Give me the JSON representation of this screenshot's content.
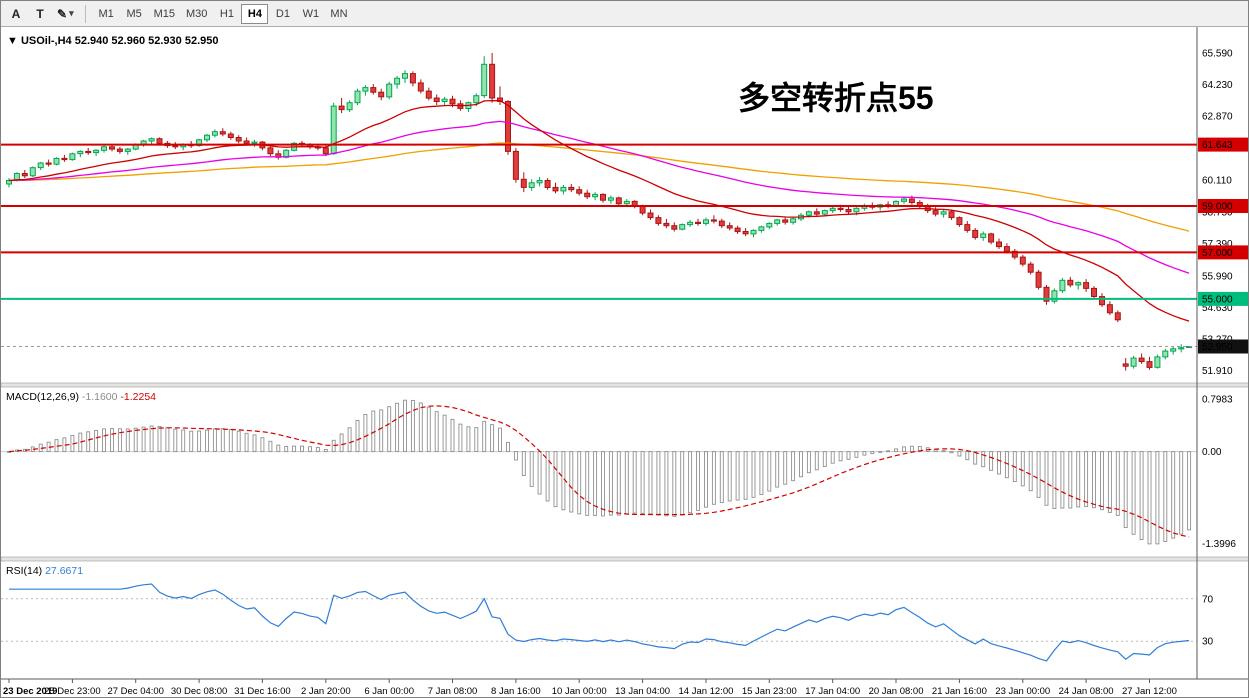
{
  "toolbar": {
    "tool_buttons": [
      {
        "name": "font-tool",
        "glyph": "A"
      },
      {
        "name": "text-tool",
        "glyph": "T"
      },
      {
        "name": "line-tools",
        "glyph": "✎",
        "caret": "▾"
      }
    ],
    "timeframes": [
      "M1",
      "M5",
      "M15",
      "M30",
      "H1",
      "H4",
      "D1",
      "W1",
      "MN"
    ],
    "active_timeframe": "H4"
  },
  "chart_data": {
    "type": "candlestick",
    "header_triangle": "▼",
    "title": "USOil-,H4",
    "ohlc_display": [
      "52.940",
      "52.960",
      "52.930",
      "52.950"
    ],
    "ylim": [
      51.55,
      66.45
    ],
    "style": {
      "bull_stroke": "#00a651",
      "bull_fill": "#8fe5ac",
      "bear_stroke": "#a81414",
      "bear_fill": "#e03c3c"
    },
    "price_ticks": [
      {
        "label": "65.590",
        "value": 65.59
      },
      {
        "label": "64.230",
        "value": 64.23
      },
      {
        "label": "62.870",
        "value": 62.87
      },
      {
        "label": "60.110",
        "value": 60.11
      },
      {
        "label": "58.750",
        "value": 58.75
      },
      {
        "label": "57.390",
        "value": 57.39
      },
      {
        "label": "55.990",
        "value": 55.99
      },
      {
        "label": "54.630",
        "value": 54.63
      },
      {
        "label": "53.270",
        "value": 53.27
      },
      {
        "label": "51.910",
        "value": 51.91
      }
    ],
    "price_levels": [
      {
        "label": "61.643",
        "value": 61.643,
        "color": "#d40000",
        "line_width": 2
      },
      {
        "label": "59.000",
        "value": 59.0,
        "color": "#d40000",
        "line_width": 2
      },
      {
        "label": "57.000",
        "value": 57.0,
        "color": "#d40000",
        "line_width": 2
      },
      {
        "label": "55.000",
        "value": 55.0,
        "color": "#00bd7d",
        "line_width": 2
      }
    ],
    "current_price": {
      "label": "52.950",
      "value": 52.95,
      "badge_color": "#111111"
    },
    "annotation": {
      "text": "多空转折点55",
      "color": "#ff1111"
    },
    "moving_averages": [
      {
        "name": "ma-slow-line",
        "period": 120,
        "method": "ema",
        "color": "#f0a000"
      },
      {
        "name": "ma-mid-line",
        "period": 55,
        "method": "ema",
        "color": "#e800e8"
      },
      {
        "name": "ma-fast-line",
        "period": 21,
        "method": "ema",
        "color": "#cc0000"
      }
    ],
    "indicators": {
      "macd": {
        "label": "MACD(12,26,9)",
        "value_main": "-1.1600",
        "value_signal": "-1.2254",
        "fast": 12,
        "slow": 26,
        "signal": 9,
        "axis_labels": [
          "0.7983",
          "0.00",
          "-1.3996"
        ],
        "histogram_color": "#909090",
        "signal_color": "#d40000"
      },
      "rsi": {
        "label": "RSI(14)",
        "value": "27.6671",
        "period": 14,
        "levels": [
          70,
          30
        ],
        "range": [
          0,
          100
        ],
        "line_color": "#2f7ed8"
      }
    },
    "time_labels": [
      {
        "label": "23 Dec 2019",
        "bar": 0,
        "bold": true
      },
      {
        "label": "25 Dec 23:00",
        "bar": 8
      },
      {
        "label": "27 Dec 04:00",
        "bar": 16
      },
      {
        "label": "30 Dec 08:00",
        "bar": 24
      },
      {
        "label": "31 Dec 16:00",
        "bar": 32
      },
      {
        "label": "2 Jan 20:00",
        "bar": 40
      },
      {
        "label": "6 Jan 00:00",
        "bar": 48
      },
      {
        "label": "7 Jan 08:00",
        "bar": 56
      },
      {
        "label": "8 Jan 16:00",
        "bar": 64
      },
      {
        "label": "10 Jan 00:00",
        "bar": 72
      },
      {
        "label": "13 Jan 04:00",
        "bar": 80
      },
      {
        "label": "14 Jan 12:00",
        "bar": 88
      },
      {
        "label": "15 Jan 23:00",
        "bar": 96
      },
      {
        "label": "17 Jan 04:00",
        "bar": 104
      },
      {
        "label": "20 Jan 08:00",
        "bar": 112
      },
      {
        "label": "21 Jan 16:00",
        "bar": 120
      },
      {
        "label": "23 Jan 00:00",
        "bar": 128
      },
      {
        "label": "24 Jan 08:00",
        "bar": 136
      },
      {
        "label": "27 Jan 12:00",
        "bar": 144
      }
    ],
    "candles": [
      [
        59.95,
        60.2,
        59.8,
        60.1
      ],
      [
        60.1,
        60.45,
        60.05,
        60.4
      ],
      [
        60.4,
        60.55,
        60.2,
        60.3
      ],
      [
        60.3,
        60.7,
        60.25,
        60.65
      ],
      [
        60.65,
        60.9,
        60.55,
        60.85
      ],
      [
        60.85,
        61.0,
        60.7,
        60.8
      ],
      [
        60.8,
        61.1,
        60.75,
        61.05
      ],
      [
        61.05,
        61.2,
        60.9,
        61.0
      ],
      [
        61.0,
        61.3,
        60.95,
        61.25
      ],
      [
        61.25,
        61.4,
        61.1,
        61.35
      ],
      [
        61.35,
        61.5,
        61.2,
        61.3
      ],
      [
        61.3,
        61.45,
        61.15,
        61.4
      ],
      [
        61.4,
        61.6,
        61.3,
        61.55
      ],
      [
        61.55,
        61.65,
        61.35,
        61.45
      ],
      [
        61.45,
        61.55,
        61.25,
        61.35
      ],
      [
        61.35,
        61.5,
        61.2,
        61.45
      ],
      [
        61.45,
        61.7,
        61.4,
        61.65
      ],
      [
        61.65,
        61.85,
        61.55,
        61.8
      ],
      [
        61.8,
        61.95,
        61.65,
        61.9
      ],
      [
        61.9,
        61.95,
        61.6,
        61.7
      ],
      [
        61.7,
        61.8,
        61.5,
        61.6
      ],
      [
        61.6,
        61.75,
        61.45,
        61.55
      ],
      [
        61.55,
        61.7,
        61.4,
        61.65
      ],
      [
        61.65,
        61.8,
        61.5,
        61.6
      ],
      [
        61.6,
        61.9,
        61.55,
        61.85
      ],
      [
        61.85,
        62.1,
        61.75,
        62.05
      ],
      [
        62.05,
        62.3,
        61.95,
        62.2
      ],
      [
        62.2,
        62.35,
        62.0,
        62.1
      ],
      [
        62.1,
        62.2,
        61.85,
        61.95
      ],
      [
        61.95,
        62.05,
        61.7,
        61.8
      ],
      [
        61.8,
        61.95,
        61.6,
        61.7
      ],
      [
        61.7,
        61.85,
        61.55,
        61.75
      ],
      [
        61.75,
        61.8,
        61.4,
        61.5
      ],
      [
        61.5,
        61.6,
        61.15,
        61.25
      ],
      [
        61.25,
        61.4,
        61.0,
        61.1
      ],
      [
        61.1,
        61.45,
        61.05,
        61.4
      ],
      [
        61.4,
        61.75,
        61.35,
        61.7
      ],
      [
        61.7,
        61.8,
        61.55,
        61.65
      ],
      [
        61.65,
        61.7,
        61.45,
        61.55
      ],
      [
        61.55,
        61.65,
        61.4,
        61.5
      ],
      [
        61.5,
        61.6,
        61.15,
        61.25
      ],
      [
        61.25,
        63.45,
        61.2,
        63.3
      ],
      [
        63.3,
        63.65,
        63.0,
        63.15
      ],
      [
        63.15,
        63.55,
        63.05,
        63.45
      ],
      [
        63.45,
        64.05,
        63.35,
        63.95
      ],
      [
        63.95,
        64.2,
        63.75,
        64.1
      ],
      [
        64.1,
        64.25,
        63.8,
        63.9
      ],
      [
        63.9,
        64.05,
        63.55,
        63.7
      ],
      [
        63.7,
        64.35,
        63.6,
        64.25
      ],
      [
        64.25,
        64.6,
        64.05,
        64.5
      ],
      [
        64.5,
        64.85,
        64.3,
        64.7
      ],
      [
        64.7,
        64.8,
        64.15,
        64.3
      ],
      [
        64.3,
        64.45,
        63.85,
        63.95
      ],
      [
        63.95,
        64.1,
        63.55,
        63.65
      ],
      [
        63.65,
        63.8,
        63.35,
        63.5
      ],
      [
        63.5,
        63.7,
        63.3,
        63.6
      ],
      [
        63.6,
        63.75,
        63.25,
        63.4
      ],
      [
        63.4,
        63.55,
        63.1,
        63.2
      ],
      [
        63.2,
        63.5,
        63.05,
        63.45
      ],
      [
        63.45,
        63.85,
        63.3,
        63.75
      ],
      [
        63.75,
        65.45,
        63.65,
        65.1
      ],
      [
        65.1,
        65.59,
        63.45,
        63.65
      ],
      [
        63.65,
        64.15,
        63.35,
        63.5
      ],
      [
        63.5,
        63.55,
        61.2,
        61.35
      ],
      [
        61.35,
        61.5,
        60.0,
        60.15
      ],
      [
        60.15,
        60.45,
        59.6,
        59.8
      ],
      [
        59.8,
        60.15,
        59.65,
        60.0
      ],
      [
        60.0,
        60.25,
        59.85,
        60.1
      ],
      [
        60.1,
        60.2,
        59.7,
        59.8
      ],
      [
        59.8,
        60.0,
        59.55,
        59.65
      ],
      [
        59.65,
        59.9,
        59.5,
        59.8
      ],
      [
        59.8,
        59.95,
        59.6,
        59.7
      ],
      [
        59.7,
        59.85,
        59.45,
        59.55
      ],
      [
        59.55,
        59.7,
        59.3,
        59.4
      ],
      [
        59.4,
        59.6,
        59.25,
        59.5
      ],
      [
        59.5,
        59.55,
        59.15,
        59.25
      ],
      [
        59.25,
        59.45,
        59.1,
        59.35
      ],
      [
        59.35,
        59.4,
        59.0,
        59.1
      ],
      [
        59.1,
        59.3,
        58.95,
        59.2
      ],
      [
        59.2,
        59.25,
        58.9,
        59.0
      ],
      [
        59.0,
        59.05,
        58.6,
        58.7
      ],
      [
        58.7,
        58.85,
        58.4,
        58.5
      ],
      [
        58.5,
        58.6,
        58.15,
        58.25
      ],
      [
        58.25,
        58.45,
        58.05,
        58.15
      ],
      [
        58.15,
        58.3,
        57.9,
        58.0
      ],
      [
        58.0,
        58.25,
        57.95,
        58.2
      ],
      [
        58.2,
        58.4,
        58.1,
        58.3
      ],
      [
        58.3,
        58.45,
        58.15,
        58.25
      ],
      [
        58.25,
        58.5,
        58.15,
        58.4
      ],
      [
        58.4,
        58.6,
        58.25,
        58.35
      ],
      [
        58.35,
        58.45,
        58.05,
        58.15
      ],
      [
        58.15,
        58.3,
        57.95,
        58.05
      ],
      [
        58.05,
        58.15,
        57.8,
        57.9
      ],
      [
        57.9,
        58.05,
        57.7,
        57.8
      ],
      [
        57.8,
        58.0,
        57.65,
        57.95
      ],
      [
        57.95,
        58.15,
        57.85,
        58.1
      ],
      [
        58.1,
        58.3,
        58.0,
        58.25
      ],
      [
        58.25,
        58.45,
        58.15,
        58.4
      ],
      [
        58.4,
        58.55,
        58.2,
        58.3
      ],
      [
        58.3,
        58.5,
        58.2,
        58.45
      ],
      [
        58.45,
        58.7,
        58.35,
        58.6
      ],
      [
        58.6,
        58.8,
        58.5,
        58.75
      ],
      [
        58.75,
        58.9,
        58.55,
        58.65
      ],
      [
        58.65,
        58.85,
        58.55,
        58.8
      ],
      [
        58.8,
        59.0,
        58.7,
        58.9
      ],
      [
        58.9,
        59.05,
        58.75,
        58.85
      ],
      [
        58.85,
        59.0,
        58.65,
        58.75
      ],
      [
        58.75,
        58.95,
        58.6,
        58.9
      ],
      [
        58.9,
        59.1,
        58.8,
        59.0
      ],
      [
        59.0,
        59.15,
        58.85,
        58.95
      ],
      [
        58.95,
        59.1,
        58.8,
        59.05
      ],
      [
        59.05,
        59.2,
        58.9,
        59.0
      ],
      [
        59.0,
        59.25,
        58.95,
        59.2
      ],
      [
        59.2,
        59.4,
        59.1,
        59.3
      ],
      [
        59.3,
        59.45,
        59.05,
        59.15
      ],
      [
        59.15,
        59.25,
        58.9,
        59.0
      ],
      [
        59.0,
        59.1,
        58.7,
        58.8
      ],
      [
        58.8,
        58.95,
        58.55,
        58.65
      ],
      [
        58.65,
        58.85,
        58.5,
        58.75
      ],
      [
        58.75,
        58.8,
        58.4,
        58.5
      ],
      [
        58.5,
        58.55,
        58.1,
        58.2
      ],
      [
        58.2,
        58.35,
        57.85,
        57.95
      ],
      [
        57.95,
        58.05,
        57.55,
        57.65
      ],
      [
        57.65,
        57.9,
        57.5,
        57.8
      ],
      [
        57.8,
        57.85,
        57.35,
        57.45
      ],
      [
        57.45,
        57.6,
        57.15,
        57.25
      ],
      [
        57.25,
        57.4,
        56.95,
        57.05
      ],
      [
        57.05,
        57.15,
        56.7,
        56.8
      ],
      [
        56.8,
        56.9,
        56.4,
        56.5
      ],
      [
        56.5,
        56.6,
        56.05,
        56.15
      ],
      [
        56.15,
        56.25,
        55.4,
        55.5
      ],
      [
        55.5,
        55.6,
        54.75,
        54.9
      ],
      [
        54.9,
        55.45,
        54.8,
        55.35
      ],
      [
        55.35,
        55.9,
        55.25,
        55.8
      ],
      [
        55.8,
        55.95,
        55.5,
        55.6
      ],
      [
        55.6,
        55.75,
        55.4,
        55.7
      ],
      [
        55.7,
        55.85,
        55.3,
        55.45
      ],
      [
        55.45,
        55.55,
        55.0,
        55.1
      ],
      [
        55.1,
        55.25,
        54.65,
        54.75
      ],
      [
        54.75,
        54.9,
        54.3,
        54.4
      ],
      [
        54.4,
        54.5,
        54.0,
        54.1
      ],
      [
        52.2,
        52.45,
        51.91,
        52.1
      ],
      [
        52.1,
        52.55,
        52.0,
        52.45
      ],
      [
        52.45,
        52.65,
        52.2,
        52.3
      ],
      [
        52.3,
        52.5,
        51.95,
        52.05
      ],
      [
        52.05,
        52.6,
        52.0,
        52.5
      ],
      [
        52.5,
        52.85,
        52.4,
        52.75
      ],
      [
        52.75,
        52.95,
        52.6,
        52.85
      ],
      [
        52.85,
        53.05,
        52.7,
        52.9
      ],
      [
        52.94,
        52.96,
        52.93,
        52.95
      ]
    ]
  }
}
